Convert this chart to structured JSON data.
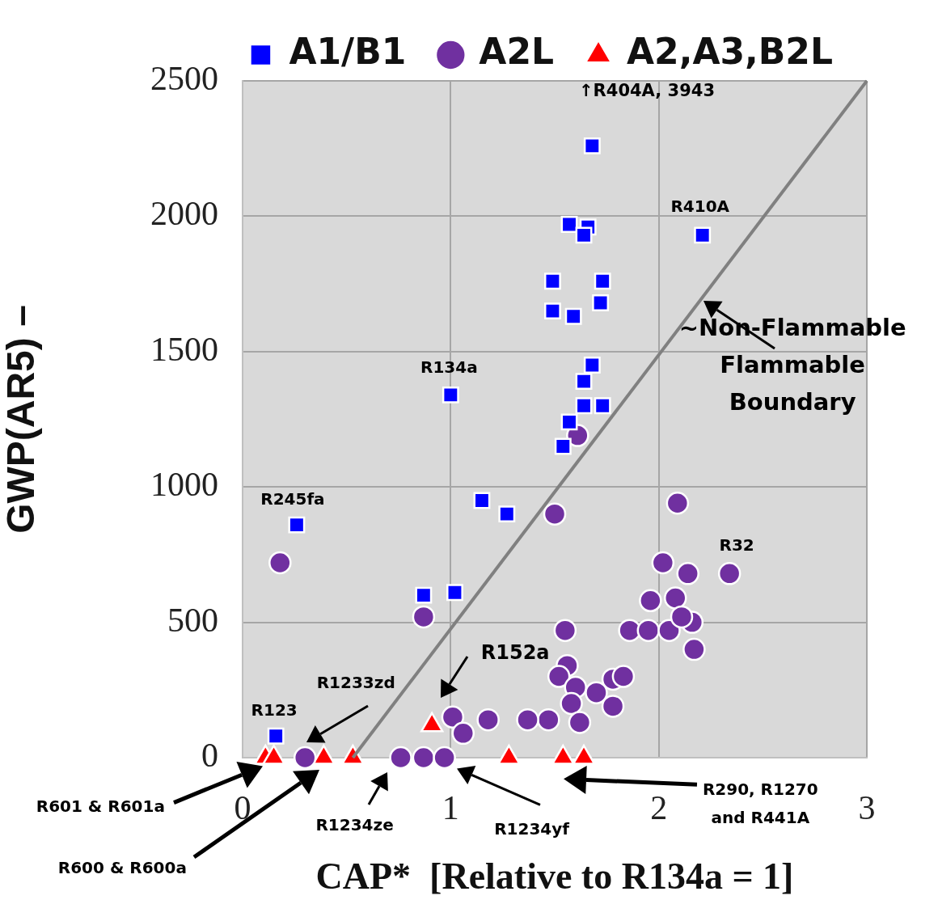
{
  "chart_data": {
    "type": "scatter",
    "xlabel": "CAP*  [Relative to R134a = 1]",
    "ylabel": "GWP(AR5) –",
    "xlim": [
      0,
      3
    ],
    "xticks": [
      0,
      1,
      2,
      3
    ],
    "ylim": [
      0,
      2500
    ],
    "yticks": [
      0,
      500,
      1000,
      1500,
      2000,
      2500
    ],
    "grid": true,
    "legend": "top",
    "series": [
      {
        "name": "A1/B1",
        "color": "#0000ff",
        "marker": "square",
        "x": [
          1.68,
          1.57,
          1.66,
          1.64,
          1.49,
          1.73,
          1.49,
          1.59,
          1.72,
          1.68,
          1.64,
          1.64,
          1.73,
          1.57,
          1.54,
          1.0,
          1.15,
          1.27,
          0.26,
          0.87,
          1.02,
          2.21,
          0.16
        ],
        "values": [
          2260,
          1970,
          1960,
          1930,
          1760,
          1760,
          1650,
          1630,
          1680,
          1450,
          1390,
          1300,
          1300,
          1240,
          1150,
          1340,
          950,
          900,
          860,
          600,
          610,
          1930,
          80
        ]
      },
      {
        "name": "A2L",
        "color": "#7030a0",
        "marker": "circle",
        "x": [
          0.18,
          0.87,
          1.5,
          1.61,
          2.09,
          2.02,
          2.14,
          2.34,
          1.96,
          2.08,
          1.86,
          1.95,
          2.05,
          2.16,
          2.17,
          2.11,
          1.55,
          1.56,
          1.52,
          1.6,
          1.7,
          1.78,
          1.83,
          1.78,
          1.58,
          1.62,
          1.47,
          1.37,
          1.18,
          1.01,
          1.06,
          0.76,
          0.87,
          0.97,
          0.3
        ],
        "values": [
          720,
          520,
          900,
          1190,
          940,
          720,
          680,
          680,
          580,
          590,
          470,
          470,
          470,
          500,
          400,
          520,
          470,
          340,
          300,
          260,
          240,
          290,
          300,
          190,
          200,
          130,
          140,
          140,
          140,
          150,
          90,
          0,
          0,
          0,
          0
        ]
      },
      {
        "name": "A2,A3,B2L",
        "color": "#ff0000",
        "marker": "triangle",
        "x": [
          0.11,
          0.15,
          0.39,
          0.53,
          0.91,
          1.28,
          1.54,
          1.64
        ],
        "values": [
          0,
          0,
          0,
          0,
          120,
          0,
          0,
          0
        ]
      },
      {
        "type": "line",
        "color": "#808080",
        "marker": "none",
        "x": [
          0.53,
          3
        ],
        "values": [
          0,
          2500
        ]
      }
    ],
    "annotations": [
      "↑R404A, 3943",
      {
        "text": "R410A",
        "x": 2.21,
        "y": 1930
      },
      {
        "text": "R134a",
        "x": 1.0,
        "y": 1340
      },
      {
        "text": "R245fa",
        "x": 0.26,
        "y": 860
      },
      {
        "text": "R32",
        "x": 2.34,
        "y": 680
      },
      {
        "text": "R123",
        "x": 0.16,
        "y": 80
      },
      "R1233zd",
      "R152a",
      "R1234ze",
      "R1234yf",
      "R601 & R601a",
      "R600 & R600a",
      "R290, R1270\nand R441A",
      {
        "text": "~Non-Flammable\nFlammable\nBoundary",
        "x": 2.2,
        "y": 1690
      }
    ]
  }
}
